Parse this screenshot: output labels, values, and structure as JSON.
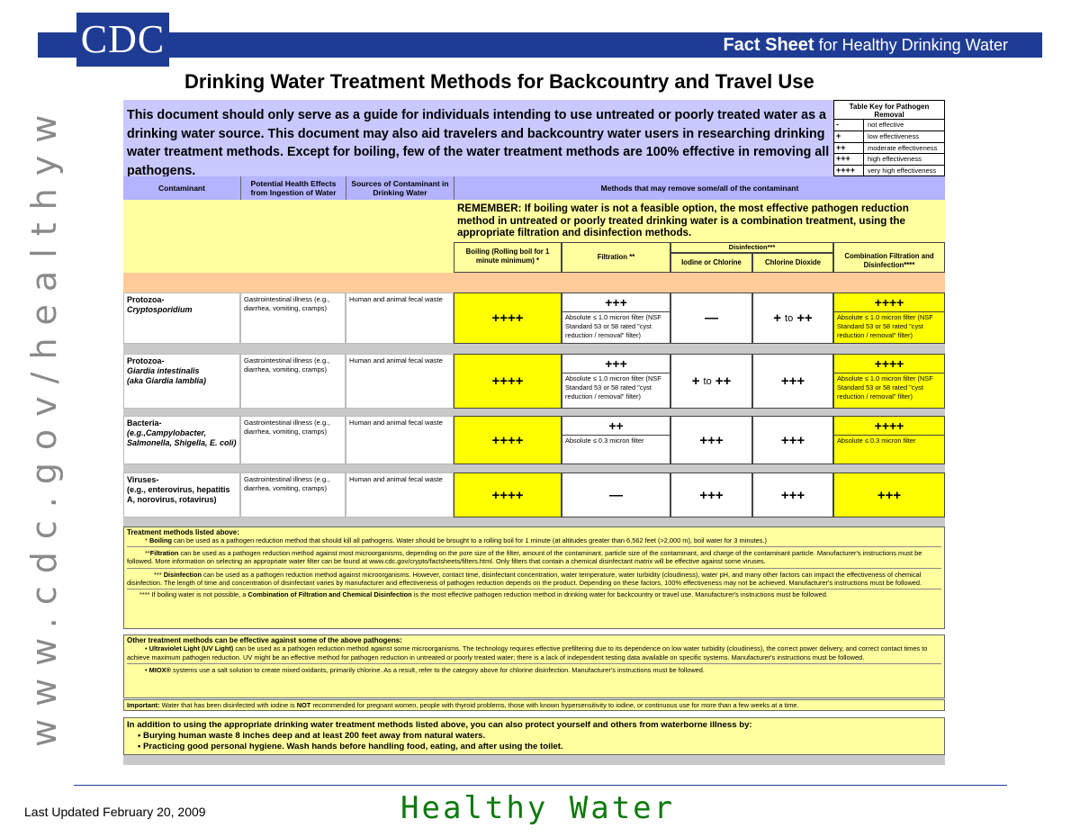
{
  "logo_text": "CDC",
  "banner": {
    "bold": "Fact Sheet",
    "rest": " for Healthy Drinking Water"
  },
  "title": "Drinking Water Treatment Methods for Backcountry and Travel Use",
  "side_url": "www.cdc.gov/healthywater",
  "intro": "This document should only serve as a guide for individuals intending to use untreated or poorly treated water as a drinking water source.  This document may also aid travelers and backcountry water users in researching drinking water treatment methods.  Except for boiling, few of the water treatment methods are 100% effective in removing all pathogens.",
  "key": {
    "title": "Table Key for Pathogen Removal",
    "rows": [
      {
        "sym": "-",
        "desc": "not effective"
      },
      {
        "sym": "+",
        "desc": "low effectiveness"
      },
      {
        "sym": "++",
        "desc": "moderate effectiveness"
      },
      {
        "sym": "+++",
        "desc": "high effectiveness"
      },
      {
        "sym": "++++",
        "desc": "very high effectiveness"
      }
    ]
  },
  "headers": {
    "contaminant": "Contaminant",
    "effects": "Potential Health Effects from Ingestion of Water",
    "sources": "Sources of Contaminant in Drinking Water",
    "methods": "Methods that may remove some/all of the contaminant",
    "remember": "REMEMBER:  If boiling water is not a feasible option, the most effective pathogen reduction method in untreated or poorly treated drinking water is a combination treatment, using the appropriate filtration and disinfection methods.",
    "boiling": "Boiling (Rolling boil for 1 minute minimum) *",
    "filtration": "Filtration **",
    "disinfection": "Disinfection***",
    "iodine": "Iodine or Chlorine",
    "chlorine_dioxide": "Chlorine Dioxide",
    "combination": "Combination Filtration and Disinfection****"
  },
  "rows": [
    {
      "name1": "Protozoa-",
      "name2": "Cryptosporidium",
      "name3": "",
      "effects": "Gastrointestinal illness (e.g., diarrhea, vomiting, cramps)",
      "source": "Human and animal fecal waste",
      "boiling": "++++",
      "filt_rating": "+++",
      "filt_note": "Absolute ≤ 1.0 micron filter (NSF Standard 53 or 58 rated \"cyst reduction / removal\" filter)",
      "iodine": "—",
      "cdio_a": "+",
      "cdio_to": "to",
      "cdio_b": "++",
      "comb_rating": "++++",
      "comb_note": "Absolute ≤ 1.0 micron filter (NSF Standard 53 or 58 rated \"cyst reduction / removal\" filter)"
    },
    {
      "name1": "Protozoa-",
      "name2": "Giardia intestinalis",
      "name3": "(aka Giardia lamblia)",
      "effects": "Gastrointestinal illness (e.g., diarrhea, vomiting, cramps)",
      "source": "Human and animal fecal waste",
      "boiling": "++++",
      "filt_rating": "+++",
      "filt_note": "Absolute ≤ 1.0 micron filter (NSF Standard 53 or 58 rated \"cyst reduction / removal\" filter)",
      "iodine_a": "+",
      "iodine_to": "to",
      "iodine_b": "++",
      "cdio": "+++",
      "comb_rating": "++++",
      "comb_note": "Absolute ≤ 1.0 micron filter (NSF Standard 53 or 58 rated \"cyst reduction / removal\" filter)"
    },
    {
      "name1": "Bacteria-",
      "name2": "(e.g.,Campylobacter, Salmonella, Shigella, E. coli)",
      "name3": "",
      "effects": "Gastrointestinal illness (e.g., diarrhea, vomiting, cramps)",
      "source": "Human and animal fecal waste",
      "boiling": "++++",
      "filt_rating": "++",
      "filt_note": "Absolute ≤ 0.3 micron filter",
      "iodine": "+++",
      "cdio": "+++",
      "comb_rating": "++++",
      "comb_note": "Absolute ≤ 0.3 micron filter"
    },
    {
      "name1": "Viruses-",
      "name2": "(e.g., enterovirus, hepatitis A, norovirus, rotavirus)",
      "name3": "",
      "effects": "Gastrointestinal illness (e.g., diarrhea, vomiting, cramps)",
      "source": "Human and animal fecal waste",
      "boiling": "++++",
      "filt_rating": "—",
      "iodine": "+++",
      "cdio": "+++",
      "comb_rating": "+++"
    }
  ],
  "notes": {
    "listed_title": "Treatment methods listed above:",
    "boil_pre": "* ",
    "boil_b": "Boiling",
    "boil_rest": " can be used as a pathogen reduction method that should kill all pathogens.  Water should be brought to a rolling boil for 1 minute (at altitudes greater than 6,562 feet (>2,000 m), boil water for 3 minutes.)",
    "filt_pre": "**",
    "filt_b": "Filtration",
    "filt_rest": " can be used as a pathogen reduction method against most microorganisms, depending on the pore size of the filter, amount of the contaminant, particle size of the contaminant, and charge of the contaminant particle. Manufacturer's instructions must be followed.  More information on selecting an appropriate water filter can be found at www.cdc.gov/crypto/factsheets/filters.html.  Only filters that contain a chemical disinfectant matrix will be effective against some viruses.",
    "dis_pre": "*** ",
    "dis_b": "Disinfection",
    "dis_rest": " can be used as a pathogen reduction method against microorganisms.  However, contact time, disinfectant concentration, water temperature, water turbidity (cloudiness), water pH, and many other factors can impact the effectiveness of chemical disinfection.  The length of time and concentration of disinfectant varies by manufacturer and effectiveness of pathogen reduction depends on the product.  Depending on these factors, 100% effectiveness may not be achieved.  Manufacturer's instructions must be followed.",
    "comb_pre": "**** If boiling water is not possible, a ",
    "comb_b": "Combination of Filtration and Chemical Disinfection",
    "comb_rest": " is the most effective pathogen reduction method in drinking water for backcountry or travel use. Manufacturer's instructions must be followed.",
    "other_title": "Other treatment methods can be effective against some of the above pathogens:",
    "uv_b": "Ultraviolet Light (UV Light)",
    "uv_rest": " can be used as a pathogen reduction method against some microorganisms. The technology requires effective prefiltering due to its dependence on low water turbidity (cloudiness), the correct power delivery, and correct contact times to achieve maximum pathogen reduction.  UV might be an effective method for pathogen reduction in untreated or poorly treated water; there is a lack of independent testing data available on specific systems. Manufacturer's instructions must be followed.",
    "miox_b": "MIOX®",
    "miox_rest": " systems use a salt solution to create mixed oxidants, primarily chlorine. As a result, refer to the category above for chlorine disinfection. Manufacturer's instructions must be followed.",
    "imp_b": "Important:",
    "imp_rest1": " Water that has been disinfected with iodine is ",
    "imp_not": "NOT",
    "imp_rest2": " recommended for pregnant women, people with thyroid problems, those with known hypersensitivity to iodine, or continuous use for more than a few weeks at a time.",
    "protect_title": "In addition to using the appropriate drinking water treatment methods listed above, you can also protect yourself and others from waterborne illness by:",
    "protect_1": "Burying human waste 8 inches deep and at least 200 feet away from natural waters.",
    "protect_2": "Practicing good personal hygiene.  Wash hands before handling food, eating, and after using the toilet."
  },
  "footer": {
    "updated": "Last Updated February 20, 2009",
    "brand": "Healthy Water"
  },
  "colors": {
    "navy": "#1f3c94",
    "lavender": "#c9c9ff",
    "yellow": "#ffff00",
    "pale_yellow": "#ffffa0",
    "green": "#0e7a0e"
  }
}
